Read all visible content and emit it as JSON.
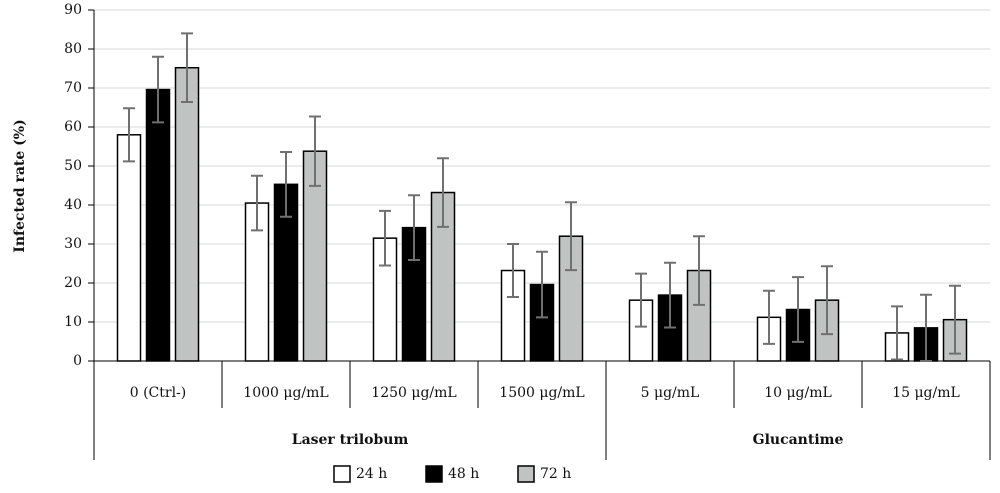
{
  "chart_data": {
    "type": "bar",
    "y_label": "Infected rate (%)",
    "groups": [
      {
        "name": "Laser trilobum",
        "categories": [
          "0 (Ctrl-)",
          "1000 μg/mL",
          "1250 μg/mL",
          "1500 μg/mL"
        ]
      },
      {
        "name": "Glucantime",
        "categories": [
          "5 μg/mL",
          "10 μg/mL",
          "15 μg/mL"
        ]
      }
    ],
    "series": [
      {
        "name": "24 h",
        "color": "#ffffff",
        "values": [
          58,
          40.5,
          31.5,
          23.2,
          15.6,
          11.2,
          7.2
        ],
        "errors": [
          6.8,
          7,
          7,
          6.8,
          6.8,
          6.8,
          6.8
        ]
      },
      {
        "name": "48 h",
        "color": "#000000",
        "values": [
          69.6,
          45.3,
          34.2,
          19.6,
          16.9,
          13.2,
          8.5
        ],
        "errors": [
          8.4,
          8.3,
          8.3,
          8.4,
          8.3,
          8.3,
          8.5
        ]
      },
      {
        "name": "72 h",
        "color": "#bfc4c2",
        "values": [
          75.2,
          53.8,
          43.2,
          32,
          23.2,
          15.6,
          10.6
        ],
        "errors": [
          8.8,
          8.9,
          8.8,
          8.7,
          8.8,
          8.7,
          8.7
        ]
      }
    ],
    "ylim": [
      0,
      90
    ],
    "yticks": [
      0,
      10,
      20,
      30,
      40,
      50,
      60,
      70,
      80,
      90
    ],
    "grid": true,
    "legend": "bottom"
  }
}
